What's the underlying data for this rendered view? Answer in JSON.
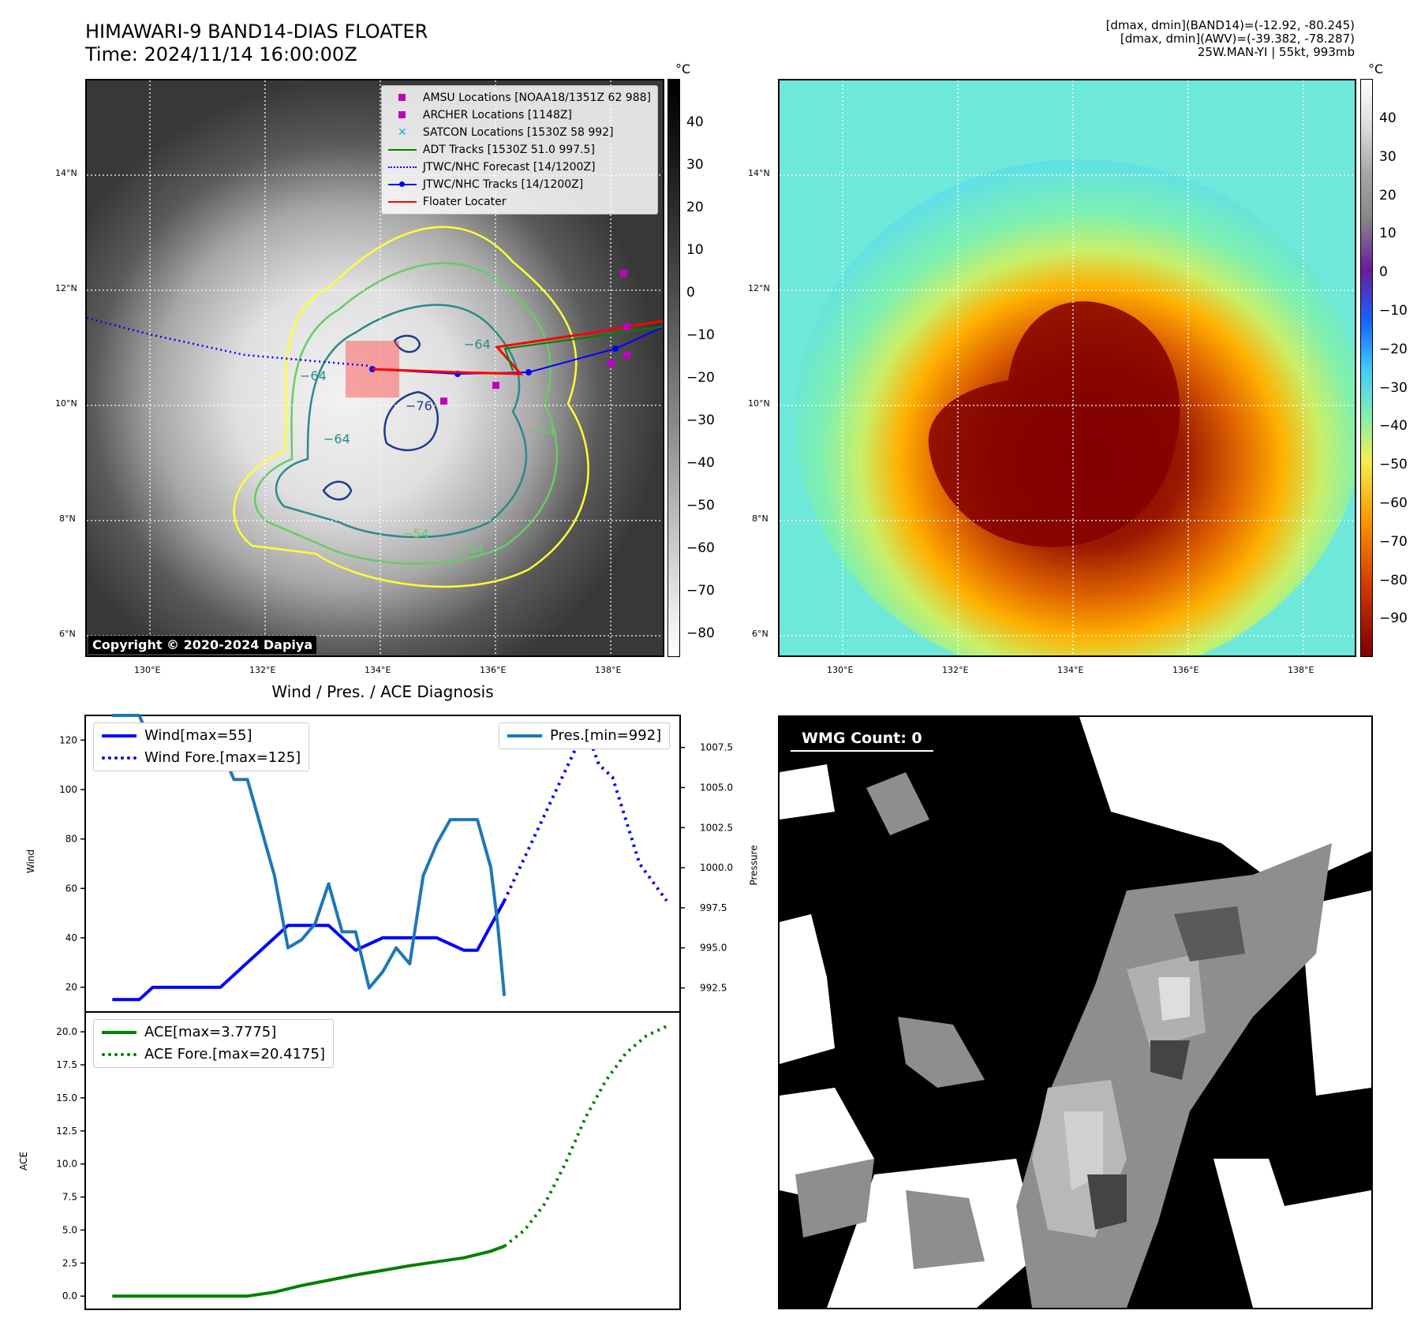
{
  "header": {
    "title": "HIMAWARI-9 BAND14-DIAS FLOATER",
    "time": "Time: 2024/11/14 16:00:00Z",
    "info_line1": "[dmax, dmin](BAND14)=(-12.92, -80.245)",
    "info_line2": "[dmax, dmin](AWV)=(-39.382, -78.287)",
    "info_line3": "25W.MAN-YI | 55kt, 993mb"
  },
  "map_axes": {
    "lat_labels": [
      "14°N",
      "12°N",
      "10°N",
      "8°N",
      "6°N"
    ],
    "lon_labels": [
      "130°E",
      "132°E",
      "134°E",
      "136°E",
      "138°E"
    ]
  },
  "ir_panel": {
    "copyright": "Copyright © 2020-2024 Dapiya",
    "colorbar_unit": "°C",
    "colorbar_ticks": [
      "40",
      "30",
      "20",
      "10",
      "0",
      "−10",
      "−20",
      "−30",
      "−40",
      "−50",
      "−60",
      "−70",
      "−80"
    ],
    "contour_labels": [
      "−64",
      "−76",
      "−64",
      "−54",
      "−54",
      "−54",
      "−64"
    ],
    "legend": [
      {
        "label": "AMSU Locations [NOAA18/1351Z 62 988]",
        "marker": "square",
        "color": "#c000c0"
      },
      {
        "label": "ARCHER Locations [1148Z]",
        "marker": "square",
        "color": "#c000c0"
      },
      {
        "label": "SATCON Locations [1530Z 58 992]",
        "marker": "x",
        "color": "#00bfbf"
      },
      {
        "label": "ADT Tracks [1530Z 51.0 997.5]",
        "marker": "line",
        "color": "#008000"
      },
      {
        "label": "JTWC/NHC Forecast [14/1200Z]",
        "marker": "dotted",
        "color": "#0000ff"
      },
      {
        "label": "JTWC/NHC Tracks [14/1200Z]",
        "marker": "line-dot",
        "color": "#0000ff"
      },
      {
        "label": "Floater Locater",
        "marker": "line",
        "color": "#ff0000"
      }
    ]
  },
  "awv_panel": {
    "colorbar_unit": "°C",
    "colorbar_ticks": [
      "40",
      "30",
      "20",
      "10",
      "0",
      "−10",
      "−20",
      "−30",
      "−40",
      "−50",
      "−60",
      "−70",
      "−80",
      "−90"
    ]
  },
  "wmg_panel": {
    "label": "WMG Count: 0"
  },
  "chart_data": [
    {
      "type": "line",
      "title": "Wind / Pres. / ACE Diagnosis",
      "ylabel": "Wind",
      "ylabel_right": "Pressure",
      "ylim": [
        10,
        130
      ],
      "yticks": [
        20,
        40,
        60,
        80,
        100,
        120
      ],
      "ylim_right": [
        991.0,
        1009.5
      ],
      "yticks_right": [
        "992.5",
        "995.0",
        "997.5",
        "1000.0",
        "1002.5",
        "1005.0",
        "1007.5"
      ],
      "xlim": [
        -2,
        42
      ],
      "series": [
        {
          "name": "Wind[max=55]",
          "axis": "left",
          "color": "#0000ff",
          "style": "solid",
          "x": [
            0,
            2,
            3,
            5,
            6,
            8,
            10,
            12,
            13,
            14,
            15,
            16,
            18,
            20,
            21,
            22,
            24,
            26,
            27,
            28,
            29
          ],
          "values": [
            15,
            15,
            20,
            20,
            20,
            20,
            30,
            40,
            45,
            45,
            45,
            45,
            35,
            40,
            40,
            40,
            40,
            35,
            35,
            45,
            55
          ]
        },
        {
          "name": "Wind Fore.[max=125]",
          "axis": "left",
          "color": "#0000ff",
          "style": "dotted",
          "x": [
            29,
            32,
            35,
            36,
            37,
            39,
            41
          ],
          "values": [
            55,
            90,
            125,
            110,
            105,
            70,
            55
          ]
        },
        {
          "name": "Pres.[min=992]",
          "axis": "right",
          "color": "#1f77b4",
          "style": "solid",
          "x": [
            0,
            2,
            2.5,
            3,
            3.5,
            4,
            5,
            6,
            8,
            9,
            10,
            11,
            11.5,
            12,
            13,
            14,
            15,
            16,
            17,
            18,
            19,
            20,
            21,
            22,
            23,
            24,
            25,
            26,
            27,
            28,
            28.5,
            29
          ],
          "values": [
            1009.5,
            1009.5,
            1008.5,
            1007.0,
            1007.0,
            1007.5,
            1007.5,
            1007.5,
            1007.5,
            1005.5,
            1005.5,
            1002.5,
            1001.0,
            999.5,
            995.0,
            995.5,
            996.5,
            999.0,
            996.0,
            996.0,
            992.5,
            993.5,
            995.0,
            994.0,
            999.5,
            1001.5,
            1003.0,
            1003.0,
            1003.0,
            1000.0,
            996.5,
            992.0
          ]
        }
      ]
    },
    {
      "type": "line",
      "ylabel": "ACE",
      "ylim": [
        -1,
        21.5
      ],
      "yticks": [
        "0.0",
        "2.5",
        "5.0",
        "7.5",
        "10.0",
        "12.5",
        "15.0",
        "17.5",
        "20.0"
      ],
      "xlim": [
        -2,
        42
      ],
      "series": [
        {
          "name": "ACE[max=3.7775]",
          "color": "#008000",
          "style": "solid",
          "x": [
            0,
            4,
            8,
            10,
            12,
            14,
            16,
            18,
            20,
            22,
            24,
            26,
            28,
            29
          ],
          "values": [
            0,
            0,
            0,
            0,
            0.3,
            0.8,
            1.2,
            1.6,
            1.95,
            2.3,
            2.6,
            2.9,
            3.4,
            3.7775
          ]
        },
        {
          "name": "ACE Fore.[max=20.4175]",
          "color": "#008000",
          "style": "dotted",
          "x": [
            29,
            30.5,
            32,
            33.5,
            35,
            36.5,
            38,
            39.5,
            41
          ],
          "values": [
            3.7775,
            5.0,
            7.0,
            10.0,
            13.5,
            16.3,
            18.4,
            19.7,
            20.4175
          ]
        }
      ]
    }
  ]
}
